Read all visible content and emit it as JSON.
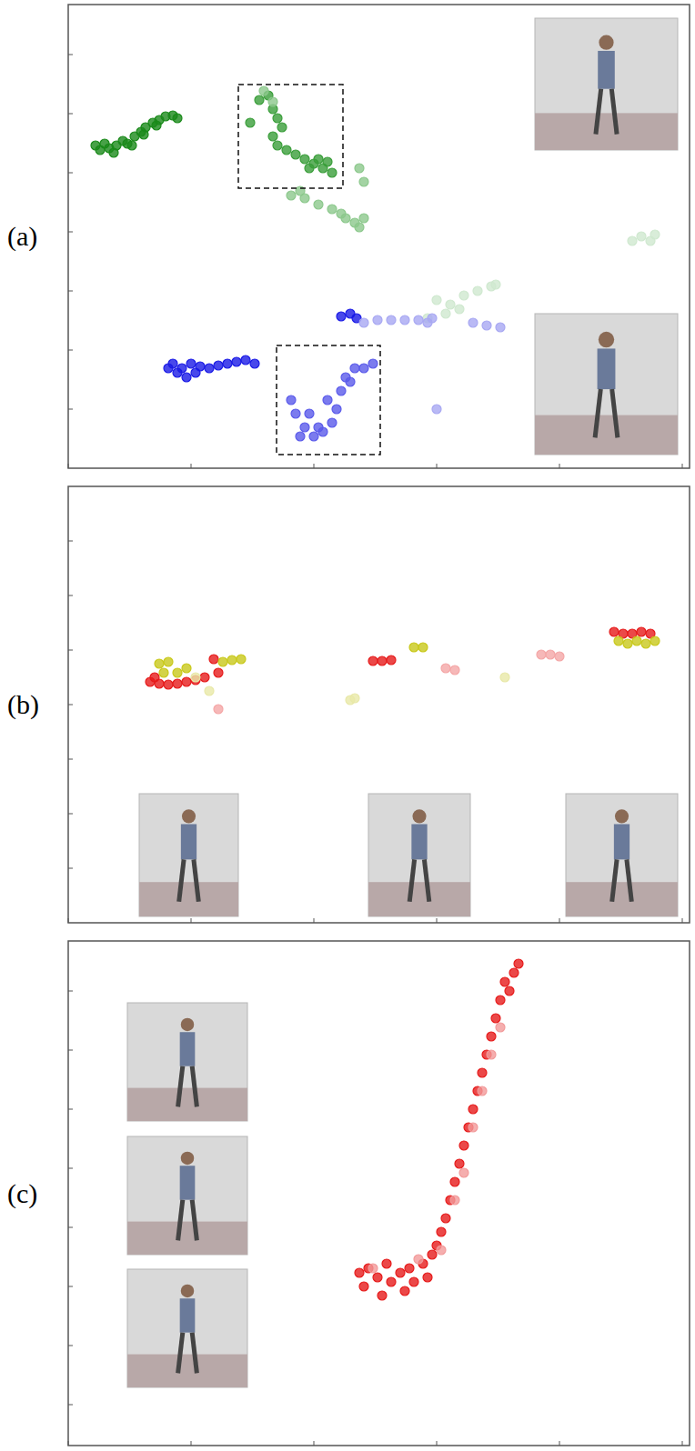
{
  "chart_data": [
    {
      "type": "scatter",
      "title": "(a)",
      "xlim": [
        0,
        683
      ],
      "ylim": [
        0,
        510
      ],
      "xticks": [
        0,
        135,
        270,
        405,
        540,
        675
      ],
      "yticks": [
        65,
        130,
        195,
        260,
        325,
        390,
        455
      ],
      "tick_labels": false,
      "boxes": [
        {
          "xlim": [
            187,
            302
          ],
          "ylim": [
            308,
            422
          ]
        },
        {
          "xlim": [
            229,
            343
          ],
          "ylim": [
            15,
            135
          ]
        }
      ],
      "series": [
        {
          "color": "#1a8a1a",
          "x": [
            30,
            35,
            40,
            45,
            53,
            60,
            65,
            73,
            80,
            85,
            93,
            100,
            107,
            115,
            120,
            50,
            70,
            83,
            97
          ],
          "values": [
            355,
            350,
            357,
            352,
            355,
            360,
            357,
            365,
            370,
            375,
            380,
            383,
            387,
            388,
            385,
            347,
            355,
            367,
            377
          ]
        },
        {
          "color": "#3a9e3a",
          "x": [
            210,
            220,
            225,
            230,
            235,
            225,
            230,
            240,
            250,
            260,
            270,
            280,
            290,
            265,
            275,
            200,
            285
          ],
          "values": [
            405,
            410,
            395,
            385,
            375,
            365,
            355,
            350,
            345,
            340,
            335,
            330,
            325,
            330,
            340,
            380,
            337
          ]
        },
        {
          "color": "#8cc88c",
          "x": [
            245,
            260,
            275,
            290,
            305,
            315,
            325,
            320,
            300,
            255,
            215,
            225,
            320,
            325
          ],
          "values": [
            300,
            297,
            290,
            285,
            275,
            270,
            275,
            265,
            280,
            305,
            415,
            403,
            330,
            315
          ]
        },
        {
          "color": "#cfe8cf",
          "x": [
            620,
            630,
            640,
            645,
            405,
            420,
            435,
            450,
            465,
            430,
            395,
            415,
            470
          ],
          "values": [
            250,
            255,
            250,
            257,
            185,
            180,
            190,
            195,
            200,
            175,
            165,
            170,
            202
          ]
        },
        {
          "color": "#1a1ae6",
          "x": [
            115,
            125,
            135,
            145,
            155,
            165,
            175,
            185,
            195,
            205,
            120,
            130,
            140,
            110,
            300,
            310,
            317
          ],
          "values": [
            115,
            110,
            115,
            112,
            110,
            113,
            115,
            117,
            119,
            115,
            105,
            100,
            105,
            110,
            167,
            170,
            165
          ]
        },
        {
          "color": "#5a5aea",
          "x": [
            245,
            250,
            260,
            270,
            280,
            290,
            295,
            300,
            305,
            315,
            325,
            335,
            265,
            285,
            255,
            275,
            310
          ],
          "values": [
            75,
            60,
            45,
            35,
            40,
            50,
            65,
            85,
            100,
            110,
            110,
            115,
            60,
            75,
            35,
            45,
            95
          ]
        },
        {
          "color": "#a8a8f2",
          "x": [
            325,
            340,
            355,
            370,
            385,
            400,
            445,
            460,
            475,
            405,
            395
          ],
          "values": [
            160,
            163,
            163,
            163,
            163,
            165,
            160,
            157,
            155,
            65,
            160
          ]
        }
      ]
    },
    {
      "type": "scatter",
      "title": "(b)",
      "xlim": [
        0,
        683
      ],
      "ylim": [
        0,
        480
      ],
      "xticks": [
        0,
        135,
        270,
        405,
        540,
        675
      ],
      "yticks": [
        60,
        120,
        180,
        240,
        300,
        360,
        420
      ],
      "tick_labels": false,
      "series": [
        {
          "color": "#e61a1a",
          "x": [
            90,
            100,
            110,
            120,
            130,
            140,
            150,
            95,
            165,
            160,
            335,
            345,
            355,
            600,
            610,
            620,
            630,
            640
          ],
          "values": [
            265,
            263,
            262,
            263,
            265,
            267,
            270,
            270,
            275,
            290,
            288,
            288,
            289,
            320,
            318,
            318,
            320,
            318
          ]
        },
        {
          "color": "#f4a6a6",
          "x": [
            415,
            425,
            520,
            530,
            540,
            165
          ],
          "values": [
            280,
            278,
            295,
            295,
            293,
            235
          ]
        },
        {
          "color": "#c8c81a",
          "x": [
            100,
            110,
            105,
            120,
            130,
            170,
            180,
            190,
            380,
            390,
            605,
            615,
            625,
            635,
            645
          ],
          "values": [
            285,
            287,
            275,
            275,
            280,
            287,
            289,
            290,
            303,
            303,
            310,
            307,
            310,
            307,
            310
          ]
        },
        {
          "color": "#e8e8a8",
          "x": [
            140,
            155,
            310,
            315,
            480
          ],
          "values": [
            270,
            255,
            245,
            247,
            270
          ]
        }
      ]
    },
    {
      "type": "scatter",
      "title": "(c)",
      "xlim": [
        0,
        683
      ],
      "ylim": [
        0,
        555
      ],
      "xticks": [
        0,
        135,
        270,
        405,
        540,
        675
      ],
      "yticks": [
        45,
        110,
        175,
        240,
        305,
        370,
        435,
        500
      ],
      "tick_labels": false,
      "series": [
        {
          "color": "#e61a1a",
          "x": [
            320,
            325,
            330,
            340,
            345,
            350,
            355,
            365,
            370,
            375,
            380,
            390,
            395,
            400,
            405,
            410,
            415,
            420,
            425,
            430,
            435,
            440,
            445,
            450,
            455,
            460,
            465,
            470,
            475,
            485,
            490,
            480,
            495
          ],
          "values": [
            190,
            175,
            195,
            185,
            165,
            200,
            180,
            190,
            170,
            195,
            180,
            200,
            185,
            210,
            220,
            235,
            250,
            270,
            290,
            310,
            330,
            350,
            370,
            390,
            410,
            430,
            450,
            470,
            490,
            500,
            520,
            510,
            530
          ]
        },
        {
          "color": "#f29a9a",
          "x": [
            425,
            435,
            445,
            455,
            465,
            475,
            410,
            385,
            335
          ],
          "values": [
            270,
            300,
            350,
            390,
            430,
            460,
            215,
            205,
            195
          ]
        }
      ]
    }
  ]
}
